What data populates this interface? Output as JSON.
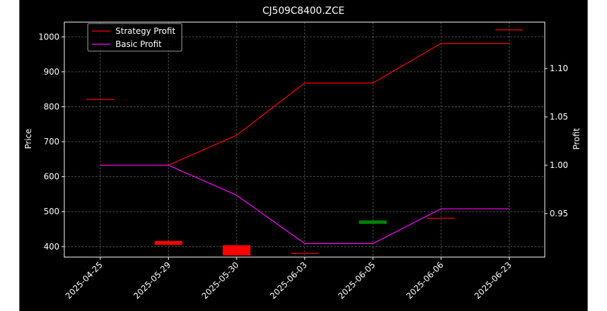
{
  "chart_data": {
    "type": "line",
    "title": "CJ509C8400.ZCE",
    "xlabel": "",
    "ylabel": "Price",
    "y2label": "Profit",
    "categories": [
      "2025-04-25",
      "2025-05-29",
      "2025-05-30",
      "2025-06-03",
      "2025-06-05",
      "2025-06-06",
      "2025-06-23"
    ],
    "ylim": [
      370,
      1042
    ],
    "y2lim": [
      0.905,
      1.148
    ],
    "yticks": [
      400,
      500,
      600,
      700,
      800,
      900,
      1000
    ],
    "y2ticks": [
      "0.95",
      "1.00",
      "1.05",
      "1.10"
    ],
    "grid": true,
    "legend_position": "top-left",
    "candles": [
      {
        "date": "2025-04-25",
        "open": 822,
        "close": 822,
        "color": "#ff0000"
      },
      {
        "date": "2025-05-29",
        "open": 416,
        "close": 405,
        "color": "#ff0000"
      },
      {
        "date": "2025-05-30",
        "open": 404,
        "close": 375,
        "color": "#ff0000"
      },
      {
        "date": "2025-06-03",
        "open": 382,
        "close": 382,
        "color": "#ff0000"
      },
      {
        "date": "2025-06-05",
        "open": 465,
        "close": 475,
        "color": "#008000"
      },
      {
        "date": "2025-06-06",
        "open": 482,
        "close": 482,
        "color": "#ff0000"
      },
      {
        "date": "2025-06-23",
        "open": 1021,
        "close": 1021,
        "color": "#ff0000"
      }
    ],
    "series": [
      {
        "name": "Strategy Profit",
        "color": "#ff0000",
        "axis": "right",
        "values": [
          1.0,
          1.0,
          1.031,
          1.085,
          1.085,
          1.126,
          1.126
        ]
      },
      {
        "name": "Basic Profit",
        "color": "#ff00ff",
        "axis": "right",
        "values": [
          1.0,
          1.0,
          0.969,
          0.919,
          0.919,
          0.955,
          0.955
        ]
      }
    ]
  }
}
